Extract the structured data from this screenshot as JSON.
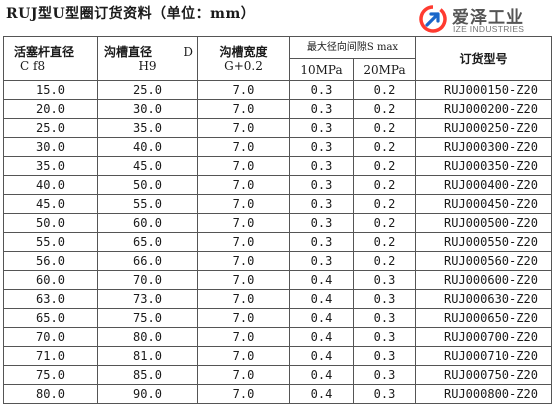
{
  "title": "RUJ型U型圈订货资料（单位：mm）",
  "logo": {
    "cn": "爱泽工业",
    "en": "IZE INDUSTRIES",
    "colors": {
      "ring": "#ff3b30",
      "arrow": "#1a66c9"
    }
  },
  "table": {
    "headers": {
      "col1_l1": "活塞杆直径",
      "col1_l2": "C f8",
      "col2_l1": "沟槽直径",
      "col2_d": "D",
      "col2_l2": "H9",
      "col3_l1": "沟槽宽度",
      "col3_l2": "G+0.2",
      "group": "最大径向间隙S max",
      "sub1": "10MPa",
      "sub2": "20MPa",
      "col6": "订货型号"
    },
    "rows": [
      [
        "15.0",
        "25.0",
        "7.0",
        "0.3",
        "0.2",
        "RUJ000150-Z20"
      ],
      [
        "20.0",
        "30.0",
        "7.0",
        "0.3",
        "0.2",
        "RUJ000200-Z20"
      ],
      [
        "25.0",
        "35.0",
        "7.0",
        "0.3",
        "0.2",
        "RUJ000250-Z20"
      ],
      [
        "30.0",
        "40.0",
        "7.0",
        "0.3",
        "0.2",
        "RUJ000300-Z20"
      ],
      [
        "35.0",
        "45.0",
        "7.0",
        "0.3",
        "0.2",
        "RUJ000350-Z20"
      ],
      [
        "40.0",
        "50.0",
        "7.0",
        "0.3",
        "0.2",
        "RUJ000400-Z20"
      ],
      [
        "45.0",
        "55.0",
        "7.0",
        "0.3",
        "0.2",
        "RUJ000450-Z20"
      ],
      [
        "50.0",
        "60.0",
        "7.0",
        "0.3",
        "0.2",
        "RUJ000500-Z20"
      ],
      [
        "55.0",
        "65.0",
        "7.0",
        "0.3",
        "0.2",
        "RUJ000550-Z20"
      ],
      [
        "56.0",
        "66.0",
        "7.0",
        "0.3",
        "0.2",
        "RUJ000560-Z20"
      ],
      [
        "60.0",
        "70.0",
        "7.0",
        "0.4",
        "0.3",
        "RUJ000600-Z20"
      ],
      [
        "63.0",
        "73.0",
        "7.0",
        "0.4",
        "0.3",
        "RUJ000630-Z20"
      ],
      [
        "65.0",
        "75.0",
        "7.0",
        "0.4",
        "0.3",
        "RUJ000650-Z20"
      ],
      [
        "70.0",
        "80.0",
        "7.0",
        "0.4",
        "0.3",
        "RUJ000700-Z20"
      ],
      [
        "71.0",
        "81.0",
        "7.0",
        "0.4",
        "0.3",
        "RUJ000710-Z20"
      ],
      [
        "75.0",
        "85.0",
        "7.0",
        "0.4",
        "0.3",
        "RUJ000750-Z20"
      ],
      [
        "80.0",
        "90.0",
        "7.0",
        "0.4",
        "0.3",
        "RUJ000800-Z20"
      ]
    ]
  }
}
